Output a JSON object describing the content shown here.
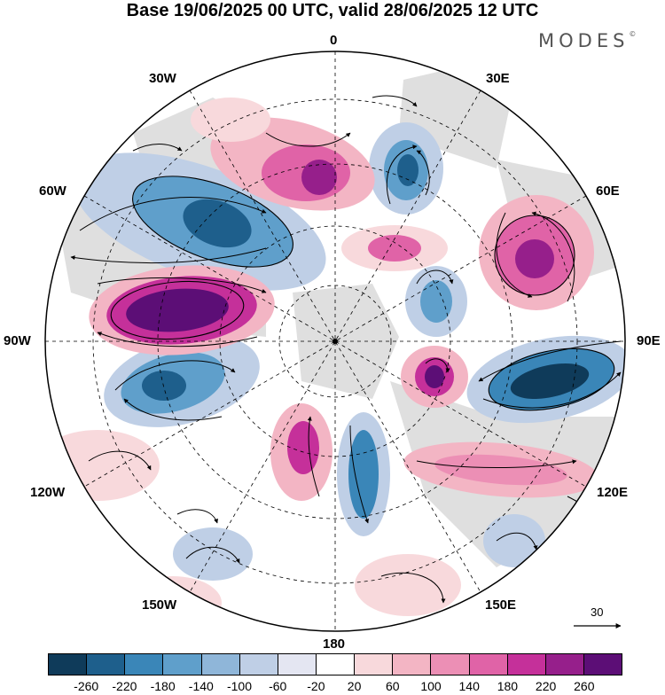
{
  "title": "Base 19/06/2025 00 UTC, valid 28/06/2025 12 UTC",
  "brand": "MODES",
  "brand_mark": "©",
  "lon_labels": {
    "top": "0",
    "bottom": "180",
    "left": "90W",
    "right": "90E",
    "w30": "30W",
    "e30": "30E",
    "w60": "60W",
    "e60": "60E",
    "w120": "120W",
    "e120": "120E",
    "w150": "150W",
    "e150": "150E"
  },
  "vector_scale_label": "30",
  "colors": {
    "neg": [
      "#0f3b5a",
      "#1e5f8c",
      "#3a86b8",
      "#5f9fcb",
      "#8fb6d9",
      "#bfcfe6",
      "#e4e6f2"
    ],
    "zero": "#ffffff",
    "pos": [
      "#f8d9dc",
      "#f3b5c4",
      "#ec8fb5",
      "#e063a7",
      "#c5309a",
      "#961f8b",
      "#5c0e76"
    ],
    "land": "#d9d9d9",
    "background": "#ffffff"
  },
  "colorbar_ticks": [
    "-260",
    "-220",
    "-180",
    "-140",
    "-100",
    "-60",
    "-20",
    "20",
    "60",
    "100",
    "140",
    "180",
    "220",
    "260"
  ]
}
